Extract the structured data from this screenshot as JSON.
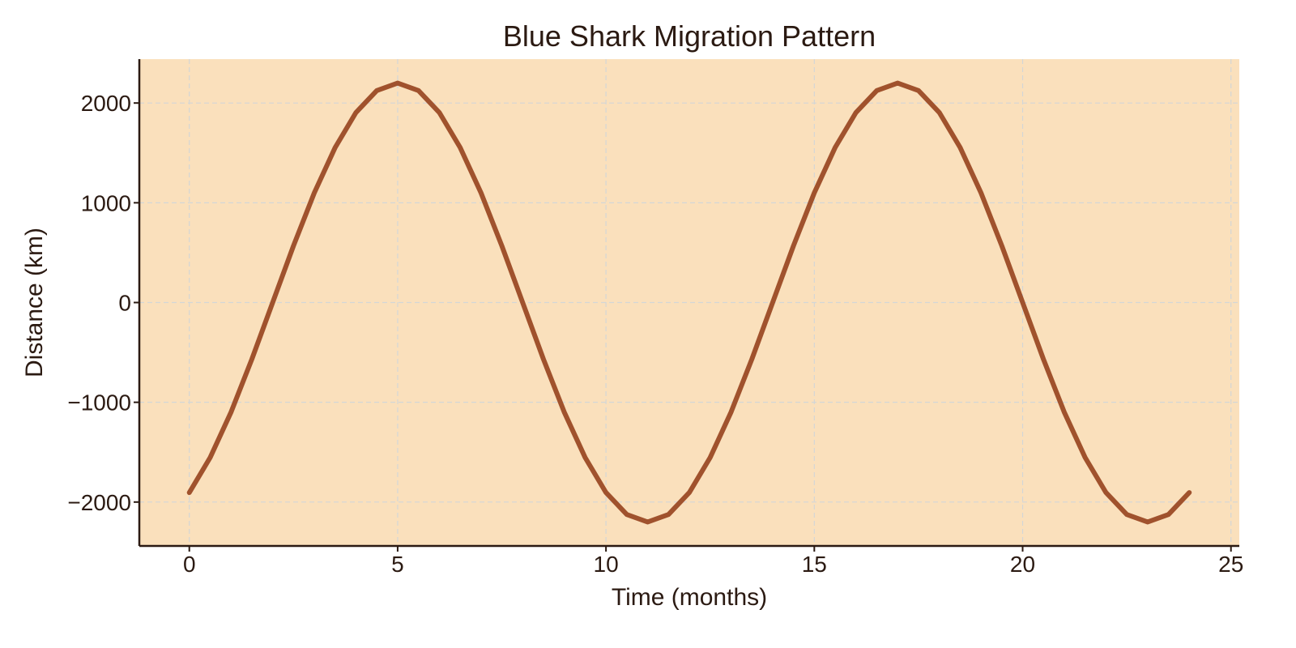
{
  "chart_data": {
    "type": "line",
    "title": "Blue Shark Migration Pattern",
    "xlabel": "Time (months)",
    "ylabel": "Distance (km)",
    "xlim": [
      -1.2,
      25.2
    ],
    "ylim": [
      -2440,
      2440
    ],
    "x_ticks": [
      0,
      5,
      10,
      15,
      20,
      25
    ],
    "x_tick_labels": [
      "0",
      "5",
      "10",
      "15",
      "20",
      "25"
    ],
    "y_ticks": [
      2000,
      1000,
      0,
      -1000,
      -2000
    ],
    "y_tick_labels": [
      "2000",
      "1000",
      "0",
      "−1000",
      "−2000"
    ],
    "grid": true,
    "legend": "none",
    "colors": {
      "plot_background": "#fae0bc",
      "line": "#a0522d",
      "grid": "#d3d6d6",
      "axis": "#2b1a12"
    },
    "series": [
      {
        "x": [
          0,
          0.5,
          1,
          1.5,
          2,
          2.5,
          3,
          3.5,
          4,
          4.5,
          5,
          5.5,
          6,
          6.5,
          7,
          7.5,
          8,
          8.5,
          9,
          9.5,
          10,
          10.5,
          11,
          11.5,
          12,
          12.5,
          13,
          13.5,
          14,
          14.5,
          15,
          15.5,
          16,
          16.5,
          17,
          17.5,
          18,
          18.5,
          19,
          19.5,
          20,
          20.5,
          21,
          21.5,
          22,
          22.5,
          23,
          23.5,
          24
        ],
        "y": [
          -1905,
          -1554,
          -1100,
          -569,
          0,
          569,
          1100,
          1554,
          1905,
          2125,
          2200,
          2125,
          1905,
          1554,
          1100,
          569,
          0,
          -569,
          -1100,
          -1554,
          -1905,
          -2125,
          -2200,
          -2125,
          -1905,
          -1554,
          -1100,
          -569,
          0,
          569,
          1100,
          1554,
          1905,
          2125,
          2200,
          2125,
          1905,
          1554,
          1100,
          569,
          0,
          -569,
          -1100,
          -1554,
          -1905,
          -2125,
          -2200,
          -2125,
          -1905
        ]
      }
    ]
  }
}
